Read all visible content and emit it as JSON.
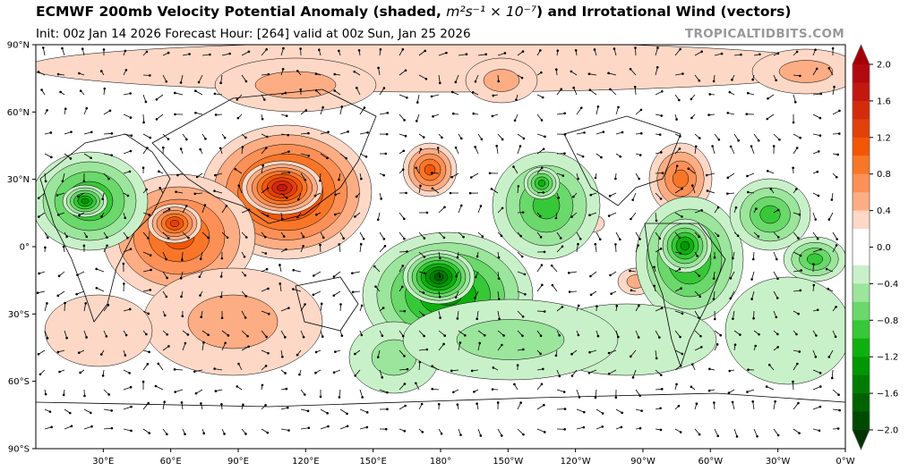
{
  "header": {
    "title_prefix": "ECMWF 200mb Velocity Potential Anomaly (shaded, ",
    "title_units": "m²s⁻¹ × 10⁻⁷",
    "title_suffix": ") and Irrotational Wind (vectors)",
    "subtitle": "Init: 00z Jan 14 2026   Forecast Hour: [264]   valid at 00z Sun, Jan 25 2026",
    "brand": "TROPICALTIDBITS.COM"
  },
  "map": {
    "lat_labels": [
      "90°N",
      "60°N",
      "30°N",
      "0°",
      "30°S",
      "60°S",
      "90°S"
    ],
    "lon_labels": [
      "30°E",
      "60°E",
      "90°E",
      "120°E",
      "150°E",
      "180°",
      "150°W",
      "120°W",
      "90°W",
      "60°W",
      "30°W",
      "0°W"
    ]
  },
  "colorbar": {
    "ticks": [
      "2.0",
      "1.6",
      "1.2",
      "0.8",
      "0.4",
      "0.0",
      "−0.4",
      "−0.8",
      "−1.2",
      "−1.6",
      "−2.0"
    ],
    "range": [
      -2.0,
      2.0
    ],
    "step": 0.2,
    "colors_top_to_bottom": [
      "#b20a0e",
      "#c4170f",
      "#d42b0c",
      "#e3400a",
      "#f25606",
      "#f97628",
      "#fc9056",
      "#fdad84",
      "#fed8c6",
      "#ffffff",
      "#ffffff",
      "#c9f1c9",
      "#9ce59c",
      "#6ad86a",
      "#37c837",
      "#0eb00e",
      "#009700",
      "#007d00",
      "#006300",
      "#004a00"
    ],
    "over_color": "#a50005",
    "under_color": "#003300"
  }
}
